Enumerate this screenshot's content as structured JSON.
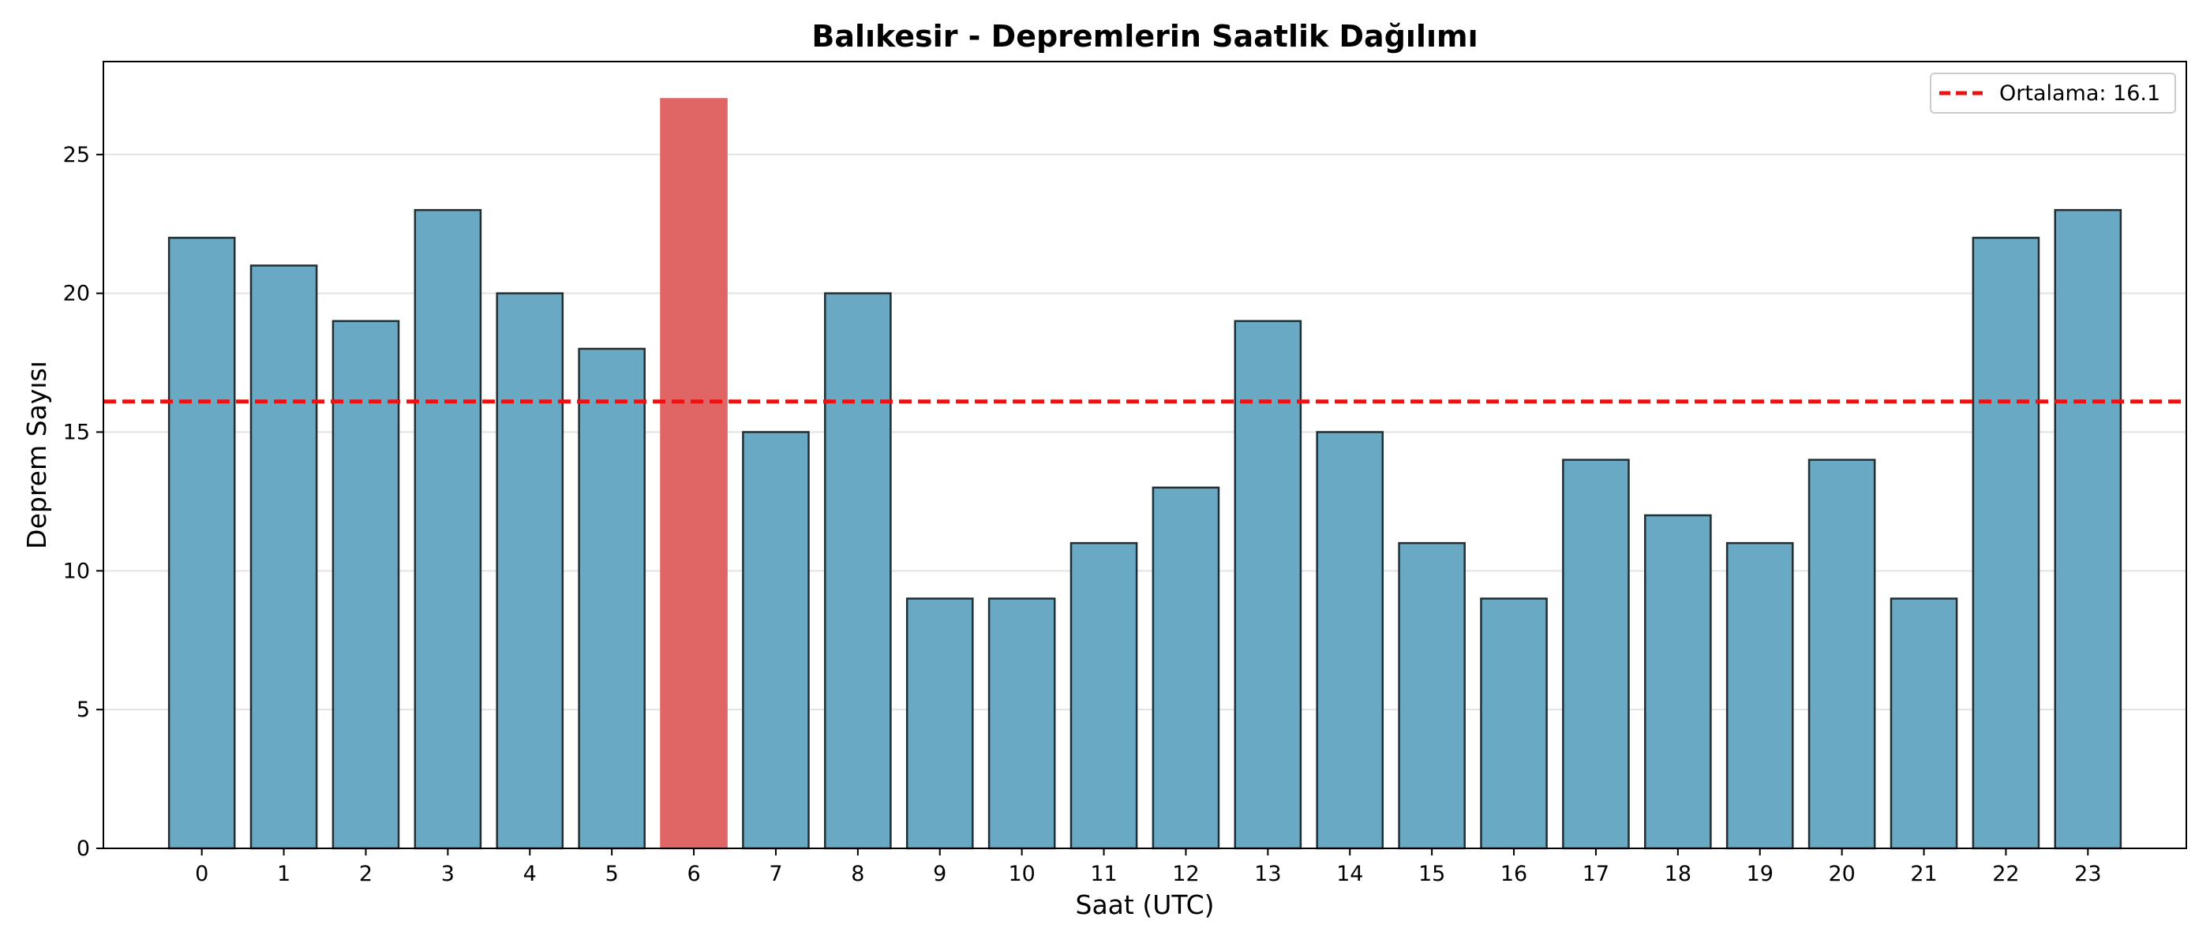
{
  "chart_data": {
    "type": "bar",
    "title": "Balıkesir - Depremlerin Saatlik Dağılımı",
    "xlabel": "Saat (UTC)",
    "ylabel": "Deprem Sayısı",
    "categories": [
      "0",
      "1",
      "2",
      "3",
      "4",
      "5",
      "6",
      "7",
      "8",
      "9",
      "10",
      "11",
      "12",
      "13",
      "14",
      "15",
      "16",
      "17",
      "18",
      "19",
      "20",
      "21",
      "22",
      "23"
    ],
    "values": [
      22,
      21,
      19,
      23,
      20,
      18,
      27,
      15,
      20,
      9,
      9,
      11,
      13,
      19,
      15,
      11,
      9,
      14,
      12,
      11,
      14,
      9,
      22,
      23
    ],
    "highlight_index": 6,
    "ylim": [
      0,
      28.35
    ],
    "yticks": [
      0,
      5,
      10,
      15,
      20,
      25
    ],
    "grid": "horizontal",
    "reference_line": {
      "value": 16.1,
      "style": "dashed",
      "color": "#ee1111",
      "label": "Ortalama: 16.1"
    },
    "legend": {
      "position": "top-right"
    },
    "colors": {
      "bar": "#6aa9c4",
      "highlight": "#e06666",
      "bar_edge": "#1f2f33",
      "grid": "#e3e3e3",
      "axis": "#000000"
    }
  }
}
